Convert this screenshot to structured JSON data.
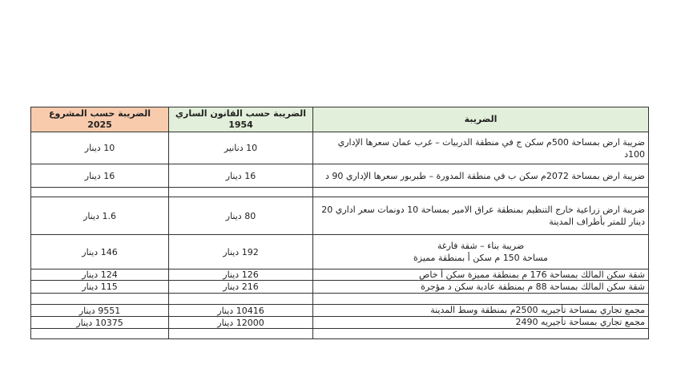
{
  "table": {
    "headers": {
      "proposed": "الضريبة حسب المشروع",
      "proposed_year": "2025",
      "current": "الضريبة حسب القانون الساري",
      "current_year": "1954",
      "tax": "الضريبة"
    },
    "rows": [
      {
        "tax": "ضريبة ارض بمساحة 500م سكن ج في منطقة الدربيات – غرب عمان  سعرها الإداري 100د",
        "current": "10 دنانير",
        "proposed": "10 دينار"
      },
      {
        "tax": "ضريبة ارض بمساحة 2072م  سكن ب  في منطقة المدورة – طبربور سعرها الإداري 90 د",
        "current": "16 دينار",
        "proposed": "16 دينار"
      },
      {
        "tax": "",
        "current": "",
        "proposed": ""
      },
      {
        "tax": "ضريبة ارض زراعية خارج التنظيم  بمنطقة عراق الامير بمساحة 10 دونمات سعر اداري 20 دينار للمتر بأطراف المدينة",
        "current": "80 دينار",
        "proposed": "1.6 دينار"
      },
      {
        "tax": "ضريبة بناء – شقة فارغة\nمساحة  150 م  سكن أ بمنطقة مميزة",
        "current": "192 دينار",
        "proposed": "146 دينار"
      },
      {
        "tax": "شقة سكن المالك  بمساحة 176 م بمنطقة مميزة  سكن أ خاص",
        "current": "126 دينار",
        "proposed": "124 دينار"
      },
      {
        "tax": "شقة سكن المالك بمساحة 88 م بمنطقة عادية  سكن د مؤجرة",
        "current": "216 دينار",
        "proposed": "115 دينار"
      },
      {
        "tax": "",
        "current": "",
        "proposed": ""
      },
      {
        "tax": "مجمع تجاري بمساحة تأجيريه 2500م بمنطقة وسط المدينة",
        "current": "10416 دينار",
        "proposed": "9551 دينار"
      },
      {
        "tax": "مجمع تجاري بمساحة تأجيريه 2490",
        "current": "12000 دينار",
        "proposed": "10375 دينار"
      },
      {
        "tax": "",
        "current": "",
        "proposed": ""
      }
    ]
  },
  "colors": {
    "proposed_header": "#f8cbad",
    "current_header": "#e2efda",
    "tax_header": "#e2efda"
  }
}
